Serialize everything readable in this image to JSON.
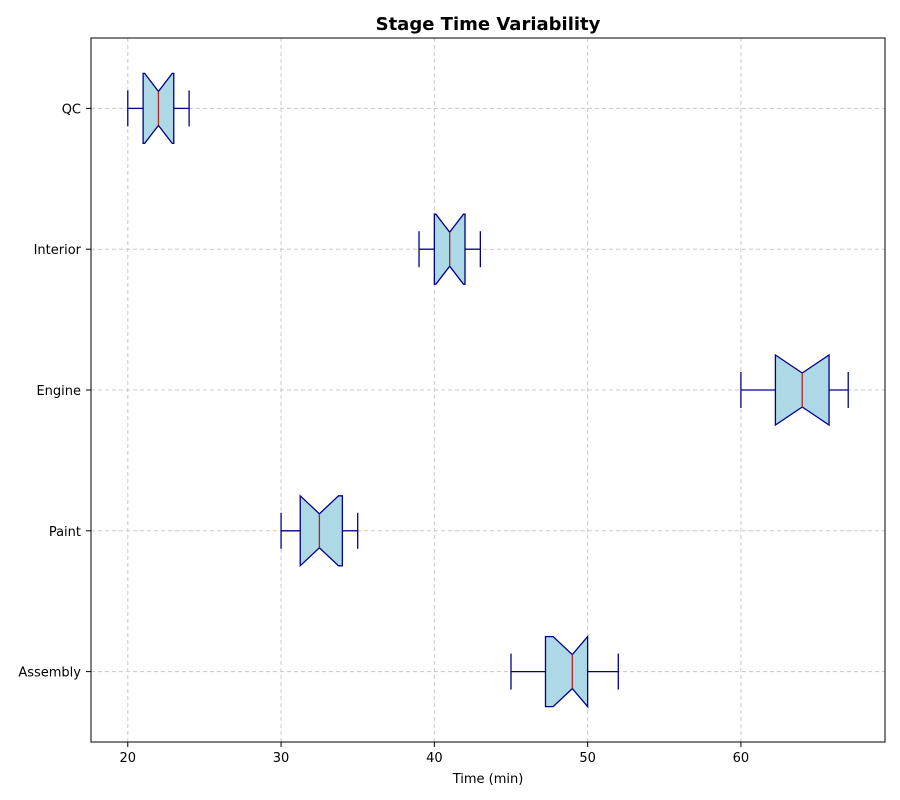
{
  "chart_data": {
    "type": "boxplot",
    "orientation": "horizontal",
    "notched": true,
    "title": "Stage Time Variability",
    "xlabel": "Time (min)",
    "ylabel": "",
    "xlim": [
      17.6,
      69.4
    ],
    "xticks": [
      20,
      30,
      40,
      50,
      60
    ],
    "grid": true,
    "categories": [
      "Assembly",
      "Paint",
      "Engine",
      "Interior",
      "QC"
    ],
    "boxes": [
      {
        "label": "Assembly",
        "whislo": 45,
        "q1": 47.25,
        "med": 49,
        "q3": 50,
        "whishi": 52,
        "notch_lo": 47.75,
        "notch_hi": 50.25
      },
      {
        "label": "Paint",
        "whislo": 30,
        "q1": 31.25,
        "med": 32.5,
        "q3": 34,
        "whishi": 35,
        "notch_lo": 31.25,
        "notch_hi": 33.75
      },
      {
        "label": "Engine",
        "whislo": 60,
        "q1": 62.25,
        "med": 64,
        "q3": 65.75,
        "whishi": 67,
        "notch_lo": 62.25,
        "notch_hi": 65.75
      },
      {
        "label": "Interior",
        "whislo": 39,
        "q1": 40,
        "med": 41,
        "q3": 42,
        "whishi": 43,
        "notch_lo": 40.1,
        "notch_hi": 41.9
      },
      {
        "label": "QC",
        "whislo": 20,
        "q1": 21,
        "med": 22,
        "q3": 23,
        "whishi": 24,
        "notch_lo": 21.1,
        "notch_hi": 22.9
      }
    ],
    "colors": {
      "box_fill": "#add8e6",
      "box_edge": "#00008b",
      "median": "#b22222",
      "grid": "#c8c8c8"
    }
  }
}
